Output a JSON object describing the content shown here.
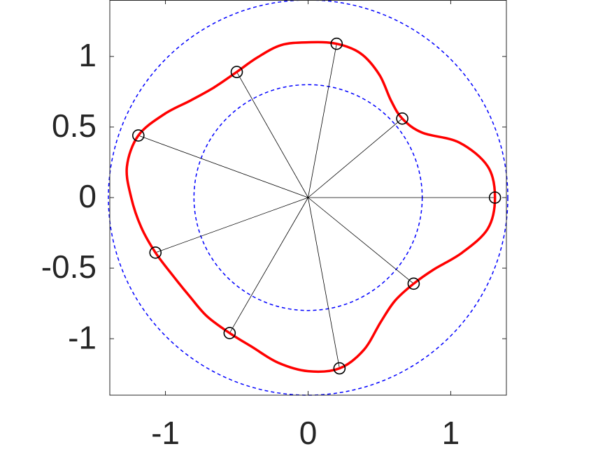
{
  "chart_data": {
    "type": "line",
    "xlim": [
      -1.39,
      1.39
    ],
    "ylim": [
      -1.4,
      1.4
    ],
    "xticks": [
      -1,
      0,
      1
    ],
    "yticks": [
      -1,
      -0.5,
      0,
      0.5,
      1
    ],
    "curve": {
      "color": "#ff0000",
      "x": [
        1.31,
        1.26,
        1.06,
        0.8,
        0.66,
        0.58,
        0.5,
        0.37,
        0.2,
        0,
        -0.19,
        -0.36,
        -0.5,
        -0.66,
        -0.82,
        -1.01,
        -1.19,
        -1.27,
        -1.24,
        -1.17,
        -1.07,
        -0.95,
        -0.83,
        -0.71,
        -0.55,
        -0.39,
        -0.21,
        0,
        0.22,
        0.39,
        0.51,
        0.61,
        0.74,
        0.88,
        1.08,
        1.26,
        1.31
      ],
      "y": [
        0,
        0.22,
        0.39,
        0.46,
        0.56,
        0.69,
        0.87,
        1.02,
        1.09,
        1.1,
        1.08,
        0.99,
        0.89,
        0.78,
        0.69,
        0.59,
        0.44,
        0.22,
        0,
        -0.21,
        -0.39,
        -0.55,
        -0.7,
        -0.84,
        -0.96,
        -1.06,
        -1.17,
        -1.23,
        -1.21,
        -1.08,
        -0.88,
        -0.73,
        -0.61,
        -0.51,
        -0.39,
        -0.22,
        0
      ]
    },
    "points": {
      "color": "#000000",
      "x": [
        1.31,
        0.66,
        0.2,
        -0.5,
        -1.19,
        -1.07,
        -0.55,
        0.22,
        0.74
      ],
      "y": [
        0,
        0.56,
        1.09,
        0.89,
        0.44,
        -0.39,
        -0.96,
        -1.21,
        -0.61
      ]
    },
    "circles": {
      "color": "#0000ff",
      "r": [
        1.4,
        0.8
      ]
    }
  }
}
